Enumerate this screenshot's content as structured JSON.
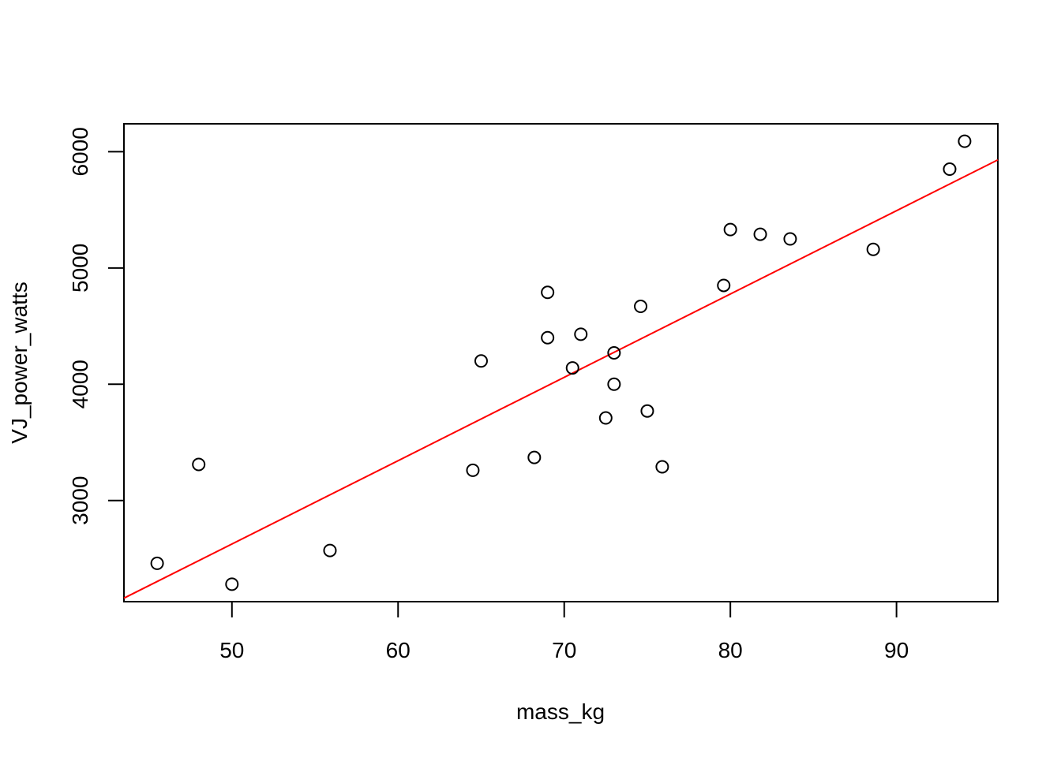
{
  "chart_data": {
    "type": "scatter",
    "title": "",
    "xlabel": "mass_kg",
    "ylabel": "VJ_power_watts",
    "xlim": [
      43.5,
      96.1
    ],
    "ylim": [
      2130,
      6240
    ],
    "x_ticks": [
      50,
      60,
      70,
      80,
      90
    ],
    "y_ticks": [
      3000,
      4000,
      5000,
      6000
    ],
    "grid": false,
    "legend": "none",
    "point_color": "#000000",
    "fit_line_color": "#ff0000",
    "series": [
      {
        "x": [
          45.5,
          48.0,
          50.0,
          55.9,
          64.5,
          65.0,
          68.2,
          69.0,
          69.0,
          70.5,
          71.0,
          72.5,
          73.0,
          73.0,
          74.6,
          75.0,
          75.9,
          79.6,
          80.0,
          81.8,
          83.6,
          88.6,
          93.2,
          94.1
        ],
        "y": [
          2460,
          3310,
          2280,
          2570,
          3260,
          4200,
          3370,
          4790,
          4400,
          4140,
          4430,
          3710,
          4000,
          4270,
          4670,
          3770,
          3290,
          4850,
          5330,
          5290,
          5250,
          5160,
          5850,
          6090
        ]
      }
    ],
    "fit_line": {
      "x": [
        43.5,
        96.1
      ],
      "y": [
        2160,
        5930
      ]
    }
  }
}
